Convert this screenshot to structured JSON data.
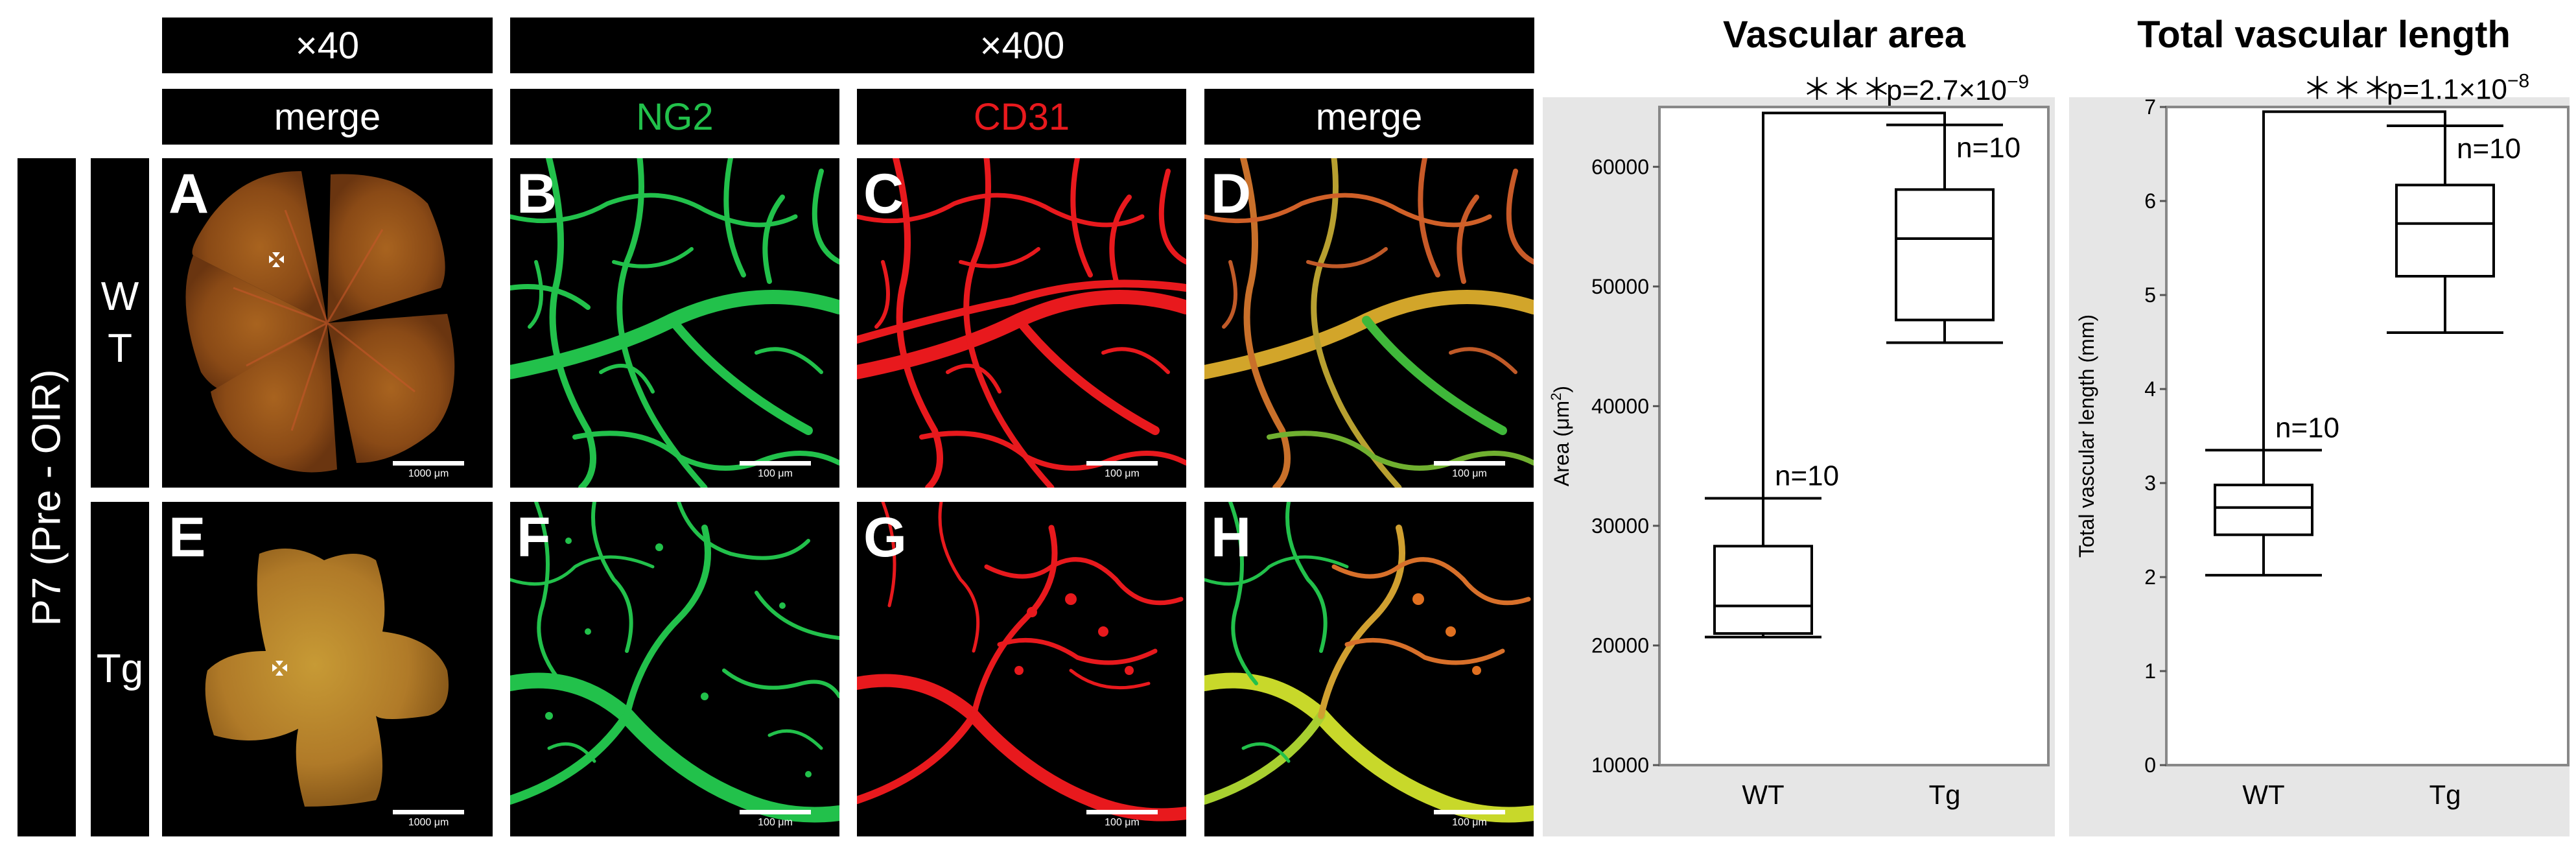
{
  "header": {
    "mag_low": "×40",
    "mag_high": "×400",
    "col_merge_low": "merge",
    "col_ng2": "NG2",
    "col_cd31": "CD31",
    "col_merge_high": "merge"
  },
  "rows": {
    "condition": "P7 (Pre - OIR)",
    "wt": "W\nT",
    "tg": "Tg"
  },
  "colors": {
    "ng2": "#22c14b",
    "cd31": "#e8191d",
    "chart_bg": "#e6e6e6",
    "panel_bg": "#000000"
  },
  "panels": [
    {
      "letter": "A",
      "type": "retina-wt",
      "scale_label": "1000 μm"
    },
    {
      "letter": "B",
      "type": "ng2-wt",
      "scale_label": "100 μm"
    },
    {
      "letter": "C",
      "type": "cd31-wt",
      "scale_label": "100 μm"
    },
    {
      "letter": "D",
      "type": "merge-wt",
      "scale_label": "100 μm"
    },
    {
      "letter": "E",
      "type": "retina-tg",
      "scale_label": "1000 μm"
    },
    {
      "letter": "F",
      "type": "ng2-tg",
      "scale_label": "100 μm"
    },
    {
      "letter": "G",
      "type": "cd31-tg",
      "scale_label": "100 μm"
    },
    {
      "letter": "H",
      "type": "merge-tg",
      "scale_label": "100 μm"
    }
  ],
  "chart_data": [
    {
      "type": "box",
      "title": "Vascular area",
      "ylabel": "Area (μm²)",
      "ylabel_base": "Area (μm",
      "ylabel_sup": "2",
      "ylabel_end": ")",
      "ylim": [
        10000,
        65000
      ],
      "yticks": [
        10000,
        20000,
        30000,
        40000,
        50000,
        60000
      ],
      "categories": [
        "WT",
        "Tg"
      ],
      "series": [
        {
          "category": "WT",
          "min": 20700,
          "q1": 21000,
          "median": 23300,
          "q3": 28300,
          "max": 32300,
          "n_label": "n=10"
        },
        {
          "category": "Tg",
          "min": 45300,
          "q1": 47200,
          "median": 54000,
          "q3": 58100,
          "max": 63500,
          "n_label": "n=10"
        }
      ],
      "significance": "＊＊＊",
      "p_value": "p=2.7×10",
      "p_exp": "−9",
      "bracket_value": 64500
    },
    {
      "type": "box",
      "title": "Total vascular length",
      "ylabel": "Total vascular length (mm)",
      "ylabel_base": "Total vascular length (mm)",
      "ylabel_sup": "",
      "ylabel_end": "",
      "ylim": [
        0,
        7
      ],
      "yticks": [
        0,
        1,
        2,
        3,
        4,
        5,
        6,
        7
      ],
      "categories": [
        "WT",
        "Tg"
      ],
      "series": [
        {
          "category": "WT",
          "min": 2.02,
          "q1": 2.45,
          "median": 2.74,
          "q3": 2.98,
          "max": 3.35,
          "n_label": "n=10"
        },
        {
          "category": "Tg",
          "min": 4.6,
          "q1": 5.2,
          "median": 5.76,
          "q3": 6.17,
          "max": 6.8,
          "n_label": "n=10"
        }
      ],
      "significance": "＊＊＊",
      "p_value": "p=1.1×10",
      "p_exp": "−8",
      "bracket_value": 6.95
    }
  ]
}
